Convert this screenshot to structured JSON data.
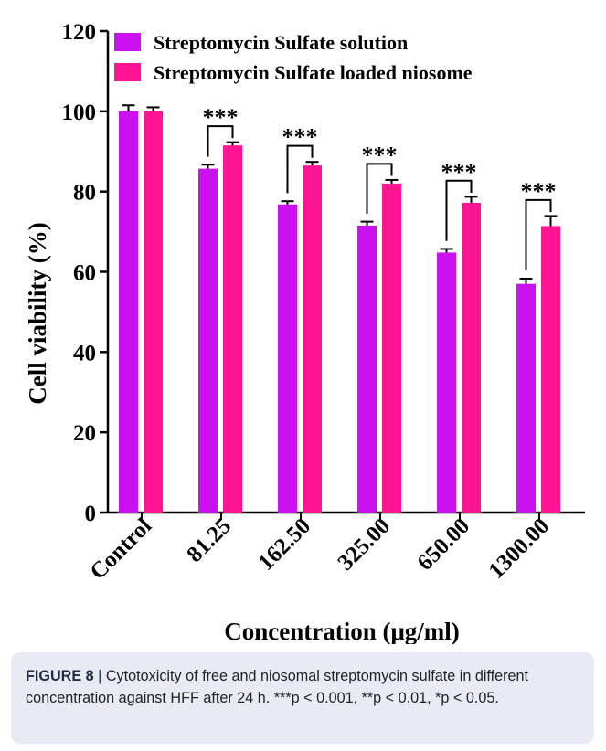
{
  "chart_data": {
    "type": "bar",
    "categories": [
      "Control",
      "81.25",
      "162.50",
      "325.00",
      "650.00",
      "1300.00"
    ],
    "series": [
      {
        "name": "Streptomycin Sulfate solution",
        "color": "#cc11f0",
        "values": [
          100,
          85.7,
          76.8,
          71.5,
          64.8,
          57
        ],
        "errors": [
          1.5,
          1.0,
          0.8,
          1.0,
          0.9,
          1.3
        ]
      },
      {
        "name": "Streptomycin Sulfate loaded niosome",
        "color": "#ff1493",
        "values": [
          100,
          91.5,
          86.5,
          82,
          77.2,
          71.4
        ],
        "errors": [
          1.0,
          0.8,
          0.9,
          0.9,
          1.5,
          2.5
        ]
      }
    ],
    "significance": [
      "",
      "***",
      "***",
      "***",
      "***",
      "***"
    ],
    "xlabel": "Concentration (μg/ml)",
    "ylabel": "Cell viability (%)",
    "ylim": [
      0,
      120
    ],
    "yticks": [
      0,
      20,
      40,
      60,
      80,
      100,
      120
    ],
    "grid": false,
    "legend_position": "top-left"
  },
  "caption": {
    "label": "FIGURE 8",
    "separator": " | ",
    "text": "Cytotoxicity of free and niosomal streptomycin sulfate in different concentration against HFF after 24 h. ***p < 0.001, **p < 0.01, *p < 0.05."
  }
}
